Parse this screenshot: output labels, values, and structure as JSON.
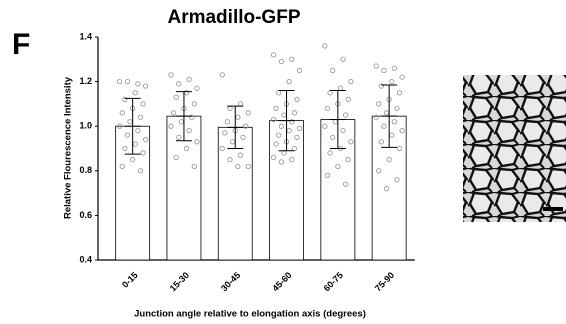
{
  "chart_data": {
    "type": "bar",
    "panel_label": "F",
    "title": "Armadillo-GFP",
    "x_label": "Junction angle relative to elongation axis (degrees)",
    "y_label": "Relative Flourescence Intensity",
    "categories": [
      "0-15",
      "15-30",
      "30-45",
      "45-60",
      "60-75",
      "75-90"
    ],
    "values": [
      1.0,
      1.045,
      0.995,
      1.025,
      1.03,
      1.045
    ],
    "errors": [
      0.125,
      0.11,
      0.095,
      0.135,
      0.13,
      0.14
    ],
    "points": [
      [
        1.2,
        1.19,
        1.2,
        1.18,
        1.15,
        1.12,
        1.1,
        1.08,
        1.06,
        1.04,
        1.02,
        1.0,
        0.98,
        0.96,
        0.94,
        0.92,
        0.9,
        0.88,
        0.85,
        0.82,
        0.8
      ],
      [
        1.23,
        1.21,
        1.19,
        1.17,
        1.15,
        1.13,
        1.1,
        1.08,
        1.06,
        1.04,
        1.02,
        1.0,
        0.98,
        0.95,
        0.93,
        0.9,
        0.86,
        0.82
      ],
      [
        1.23,
        1.1,
        1.08,
        1.06,
        1.04,
        1.02,
        1.0,
        0.98,
        0.97,
        0.95,
        0.93,
        0.9,
        0.87,
        0.85,
        0.82,
        0.82
      ],
      [
        1.32,
        1.3,
        1.29,
        1.25,
        1.2,
        1.15,
        1.12,
        1.1,
        1.08,
        1.06,
        1.05,
        1.03,
        1.02,
        1.0,
        0.99,
        0.98,
        0.96,
        0.95,
        0.93,
        0.92,
        0.9,
        0.88,
        0.86,
        0.85,
        0.84
      ],
      [
        1.36,
        1.3,
        1.25,
        1.2,
        1.17,
        1.15,
        1.12,
        1.1,
        1.08,
        1.05,
        1.02,
        1.0,
        0.98,
        0.95,
        0.93,
        0.9,
        0.88,
        0.85,
        0.82,
        0.78,
        0.74
      ],
      [
        1.27,
        1.26,
        1.25,
        1.22,
        1.2,
        1.18,
        1.15,
        1.12,
        1.1,
        1.08,
        1.06,
        1.04,
        1.02,
        1.0,
        0.98,
        0.96,
        0.93,
        0.9,
        0.85,
        0.8,
        0.76,
        0.72
      ]
    ],
    "color": "#ffffff",
    "edge_color": "#000000",
    "point_color": "#9a9a9a",
    "ylim": [
      0.4,
      1.4
    ],
    "yticks": [
      0.4,
      0.6,
      0.8,
      {
        "value": 1,
        "label": "1.0"
      },
      1.2,
      1.4
    ],
    "grid": false
  }
}
